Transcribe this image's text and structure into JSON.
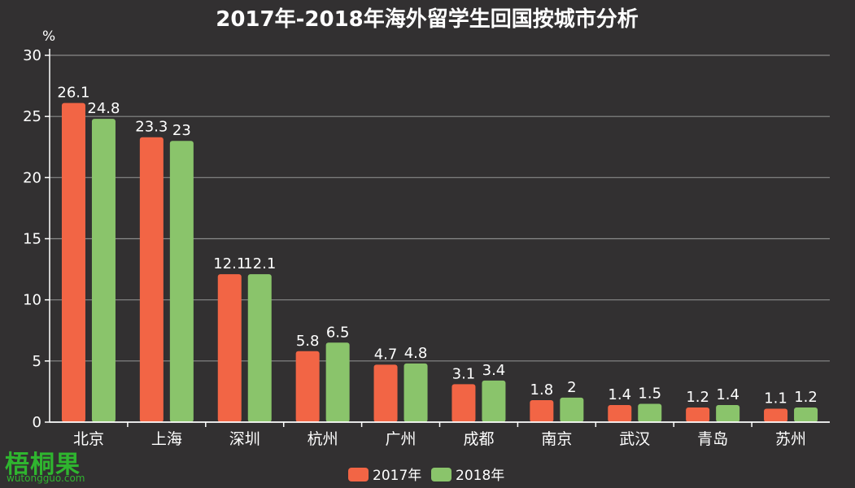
{
  "chart_data": {
    "type": "bar",
    "title": "2017年-2018年海外留学生回国按城市分析",
    "unit_label": "%",
    "ylim": [
      0,
      30
    ],
    "yticks": [
      0,
      5,
      10,
      15,
      20,
      25,
      30
    ],
    "grid": true,
    "legend_position": "bottom-center",
    "categories": [
      "北京",
      "上海",
      "深圳",
      "杭州",
      "广州",
      "成都",
      "南京",
      "武汉",
      "青岛",
      "苏州"
    ],
    "series": [
      {
        "name": "2017年",
        "color": "#f26545",
        "values": [
          26.1,
          23.3,
          12.1,
          5.8,
          4.7,
          3.1,
          1.8,
          1.4,
          1.2,
          1.1
        ]
      },
      {
        "name": "2018年",
        "color": "#8ac46b",
        "values": [
          24.8,
          23,
          12.1,
          6.5,
          4.8,
          3.4,
          2,
          1.5,
          1.4,
          1.2
        ]
      }
    ]
  },
  "watermark": {
    "brand": "梧桐果",
    "site": "wutongguo.com",
    "color": "#2fb52f"
  }
}
